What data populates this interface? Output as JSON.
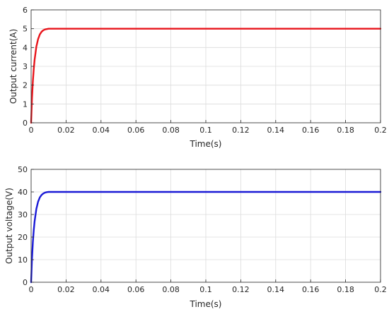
{
  "chart_data": [
    {
      "type": "line",
      "title": "",
      "xlabel": "Time(s)",
      "ylabel": "Output current(A)",
      "xlim": [
        0,
        0.2
      ],
      "ylim": [
        0,
        6
      ],
      "xticks": [
        0,
        0.02,
        0.04,
        0.06,
        0.08,
        0.1,
        0.12,
        0.14,
        0.16,
        0.18,
        0.2
      ],
      "xtick_labels": [
        "0",
        "0.02",
        "0.04",
        "0.06",
        "0.08",
        "0.1",
        "0.12",
        "0.14",
        "0.16",
        "0.18",
        "0.2"
      ],
      "yticks": [
        0,
        1,
        2,
        3,
        4,
        5,
        6
      ],
      "ytick_labels": [
        "0",
        "1",
        "2",
        "3",
        "4",
        "5",
        "6"
      ],
      "grid": true,
      "series": [
        {
          "color": "#e8141b",
          "x": [
            0,
            0.0005,
            0.001,
            0.0015,
            0.002,
            0.003,
            0.004,
            0.005,
            0.006,
            0.007,
            0.008,
            0.009,
            0.01,
            0.012,
            0.015,
            0.02,
            0.04,
            0.06,
            0.08,
            0.1,
            0.12,
            0.14,
            0.16,
            0.18,
            0.2
          ],
          "y": [
            0,
            1.3,
            2.2,
            2.85,
            3.35,
            4.05,
            4.45,
            4.7,
            4.84,
            4.92,
            4.96,
            4.98,
            5.0,
            5.0,
            5.0,
            5.0,
            5.0,
            5.0,
            5.0,
            5.0,
            5.0,
            5.0,
            5.0,
            5.0,
            5.0
          ]
        }
      ]
    },
    {
      "type": "line",
      "title": "",
      "xlabel": "Time(s)",
      "ylabel": "Output voltage(V)",
      "xlim": [
        0,
        0.2
      ],
      "ylim": [
        0,
        50
      ],
      "xticks": [
        0,
        0.02,
        0.04,
        0.06,
        0.08,
        0.1,
        0.12,
        0.14,
        0.16,
        0.18,
        0.2
      ],
      "xtick_labels": [
        "0",
        "0.02",
        "0.04",
        "0.06",
        "0.08",
        "0.1",
        "0.12",
        "0.14",
        "0.16",
        "0.18",
        "0.2"
      ],
      "yticks": [
        0,
        10,
        20,
        30,
        40,
        50
      ],
      "ytick_labels": [
        "0",
        "10",
        "20",
        "30",
        "40",
        "50"
      ],
      "grid": true,
      "series": [
        {
          "color": "#1a1ad6",
          "x": [
            0,
            0.0005,
            0.001,
            0.0015,
            0.002,
            0.003,
            0.004,
            0.005,
            0.006,
            0.007,
            0.008,
            0.009,
            0.01,
            0.012,
            0.015,
            0.02,
            0.04,
            0.06,
            0.08,
            0.1,
            0.12,
            0.14,
            0.16,
            0.18,
            0.2
          ],
          "y": [
            0,
            10.5,
            17.8,
            23.0,
            27.0,
            32.5,
            35.7,
            37.6,
            38.7,
            39.3,
            39.7,
            39.9,
            40.0,
            40.0,
            40.0,
            40.0,
            40.0,
            40.0,
            40.0,
            40.0,
            40.0,
            40.0,
            40.0,
            40.0,
            40.0
          ]
        }
      ]
    }
  ]
}
